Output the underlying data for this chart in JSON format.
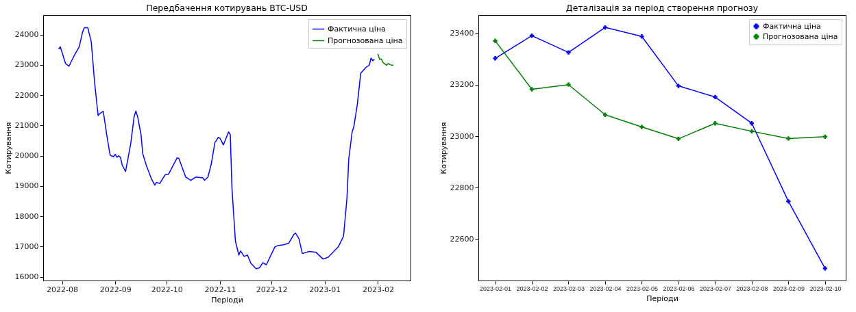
{
  "chart_data": [
    {
      "type": "line",
      "title": "Передбачення котирувань BTC-USD",
      "xlabel": "Періоди",
      "ylabel": "Котирування",
      "xlim": [
        "2022-07-21",
        "2023-02-20"
      ],
      "xticks": [
        {
          "value": "2022-08-01",
          "label": "2022-08"
        },
        {
          "value": "2022-09-01",
          "label": "2022-09"
        },
        {
          "value": "2022-10-01",
          "label": "2022-10"
        },
        {
          "value": "2022-11-01",
          "label": "2022-11"
        },
        {
          "value": "2022-12-01",
          "label": "2022-12"
        },
        {
          "value": "2023-01-01",
          "label": "2023-01"
        },
        {
          "value": "2023-02-01",
          "label": "2023-02"
        }
      ],
      "ylim": [
        15880,
        24650
      ],
      "yticks": [
        16000,
        17000,
        18000,
        19000,
        20000,
        21000,
        22000,
        23000,
        24000
      ],
      "legend": "top right",
      "series": [
        {
          "name": "Фактична ціна",
          "color": "#0000ff",
          "x": [
            "2022-07-30",
            "2022-07-31",
            "2022-08-03",
            "2022-08-05",
            "2022-08-08",
            "2022-08-11",
            "2022-08-13",
            "2022-08-14",
            "2022-08-16",
            "2022-08-18",
            "2022-08-20",
            "2022-08-22",
            "2022-08-23",
            "2022-08-25",
            "2022-08-27",
            "2022-08-29",
            "2022-08-31",
            "2022-09-01",
            "2022-09-02",
            "2022-09-03",
            "2022-09-04",
            "2022-09-05",
            "2022-09-07",
            "2022-09-10",
            "2022-09-12",
            "2022-09-13",
            "2022-09-14",
            "2022-09-16",
            "2022-09-17",
            "2022-09-19",
            "2022-09-22",
            "2022-09-24",
            "2022-09-25",
            "2022-09-27",
            "2022-09-30",
            "2022-10-02",
            "2022-10-07",
            "2022-10-08",
            "2022-10-12",
            "2022-10-15",
            "2022-10-18",
            "2022-10-22",
            "2022-10-23",
            "2022-10-25",
            "2022-10-27",
            "2022-10-29",
            "2022-10-31",
            "2022-11-01",
            "2022-11-03",
            "2022-11-06",
            "2022-11-07",
            "2022-11-08",
            "2022-11-10",
            "2022-11-12",
            "2022-11-13",
            "2022-11-15",
            "2022-11-17",
            "2022-11-19",
            "2022-11-22",
            "2022-11-24",
            "2022-11-26",
            "2022-11-28",
            "2022-12-03",
            "2022-12-05",
            "2022-12-08",
            "2022-12-11",
            "2022-12-14",
            "2022-12-15",
            "2022-12-17",
            "2022-12-19",
            "2022-12-23",
            "2022-12-27",
            "2022-12-31",
            "2023-01-03",
            "2023-01-09",
            "2023-01-12",
            "2023-01-14",
            "2023-01-15",
            "2023-01-17",
            "2023-01-18",
            "2023-01-20",
            "2023-01-22",
            "2023-01-25",
            "2023-01-27",
            "2023-01-28",
            "2023-01-29",
            "2023-01-30"
          ],
          "values": [
            23520,
            23600,
            23050,
            22960,
            23300,
            23600,
            24100,
            24230,
            24230,
            23770,
            22400,
            21330,
            21400,
            21470,
            20700,
            20020,
            19970,
            20050,
            19950,
            20000,
            19950,
            19700,
            19480,
            20400,
            21300,
            21480,
            21300,
            20700,
            20070,
            19700,
            19250,
            19030,
            19120,
            19090,
            19370,
            19390,
            19930,
            19920,
            19300,
            19190,
            19300,
            19270,
            19190,
            19300,
            19750,
            20430,
            20610,
            20580,
            20360,
            20790,
            20700,
            18900,
            17180,
            16720,
            16860,
            16680,
            16720,
            16450,
            16270,
            16300,
            16470,
            16400,
            16990,
            17040,
            17060,
            17110,
            17400,
            17450,
            17260,
            16770,
            16840,
            16810,
            16590,
            16650,
            17000,
            17350,
            18620,
            19890,
            20790,
            20970,
            21690,
            22730,
            22920,
            23000,
            23230,
            23140,
            23190
          ]
        },
        {
          "name": "Прогнозована ціна",
          "color": "#008000",
          "x": [
            "2023-02-01",
            "2023-02-02",
            "2023-02-03",
            "2023-02-04",
            "2023-02-05",
            "2023-02-06",
            "2023-02-07",
            "2023-02-08",
            "2023-02-09",
            "2023-02-10"
          ],
          "values": [
            23370,
            23182,
            23200,
            23083,
            23036,
            22990,
            23050,
            23019,
            22991,
            22998
          ]
        }
      ]
    },
    {
      "type": "line",
      "title": "Деталізація за період створення прогнозу",
      "xlabel": "Періоди",
      "ylabel": "Котирування",
      "x": [
        "2023-02-01",
        "2023-02-02",
        "2023-02-03",
        "2023-02-04",
        "2023-02-05",
        "2023-02-06",
        "2023-02-07",
        "2023-02-08",
        "2023-02-09",
        "2023-02-10"
      ],
      "xlim": [
        "2023-01-31T13:00",
        "2023-02-10T13:30"
      ],
      "xticks": [
        "2023-02-01",
        "2023-02-02",
        "2023-02-03",
        "2023-02-04",
        "2023-02-05",
        "2023-02-06",
        "2023-02-07",
        "2023-02-08",
        "2023-02-09",
        "2023-02-10"
      ],
      "ylim": [
        22440,
        23470
      ],
      "yticks": [
        22600,
        22800,
        23000,
        23200,
        23400
      ],
      "legend": "top right",
      "marker": "cross",
      "series": [
        {
          "name": "Фактична ціна",
          "color": "#0000ff",
          "values": [
            23302,
            23390,
            23325,
            23422,
            23387,
            23195,
            23152,
            23050,
            22747,
            22487
          ]
        },
        {
          "name": "Прогнозована ціна",
          "color": "#008000",
          "values": [
            23370,
            23182,
            23200,
            23083,
            23036,
            22990,
            23050,
            23019,
            22991,
            22998
          ]
        }
      ]
    }
  ]
}
